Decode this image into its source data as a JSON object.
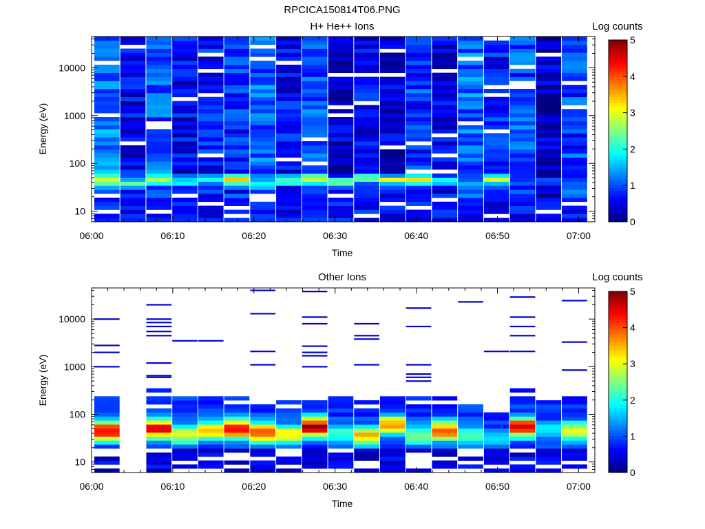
{
  "figure_title": "RPCICA150814T06.PNG",
  "chart_data": [
    {
      "type": "heatmap",
      "title": "H+ He++ Ions",
      "xlabel": "Time",
      "ylabel": "Energy (eV)",
      "y_scale": "log",
      "y_range": [
        6,
        45000
      ],
      "x_range": [
        "06:00",
        "07:02"
      ],
      "x_ticks": [
        "06:00",
        "06:10",
        "06:20",
        "06:30",
        "06:40",
        "06:50",
        "07:00"
      ],
      "y_ticks": [
        "10",
        "100",
        "1000",
        "10000"
      ],
      "colorbar": {
        "label": "Log counts",
        "range": [
          0,
          5
        ],
        "ticks": [
          "0",
          "1",
          "2",
          "3",
          "4",
          "5"
        ]
      },
      "columns": 19,
      "column_step_minutes": 3.2,
      "peak_energy_ev": [
        45,
        40,
        45,
        42,
        45,
        45,
        40,
        45,
        48,
        40,
        50,
        45,
        45,
        45,
        40,
        48,
        42,
        40,
        38
      ],
      "peak_log_counts": [
        2.7,
        2.3,
        2.6,
        2.2,
        1.9,
        3.8,
        1.5,
        2.6,
        2.9,
        2.4,
        2.6,
        2.8,
        3.4,
        1.6,
        1.2,
        2.7,
        1.0,
        1.0,
        1.3
      ],
      "background_log_counts": [
        1.2,
        0.5,
        1.0,
        0.6,
        0.7,
        0.8,
        1.1,
        0.6,
        1.0,
        0.4,
        0.6,
        0.4,
        0.9,
        0.5,
        1.1,
        0.7,
        1.0,
        0.3,
        0.9
      ]
    },
    {
      "type": "heatmap",
      "title": "Other Ions",
      "xlabel": "Time",
      "ylabel": "Energy (eV)",
      "y_scale": "log",
      "y_range": [
        6,
        45000
      ],
      "x_range": [
        "06:00",
        "07:02"
      ],
      "x_ticks": [
        "06:00",
        "06:10",
        "06:20",
        "06:30",
        "06:40",
        "06:50",
        "07:00"
      ],
      "y_ticks": [
        "10",
        "100",
        "1000",
        "10000"
      ],
      "colorbar": {
        "label": "Log counts",
        "range": [
          0,
          5
        ],
        "ticks": [
          "0",
          "1",
          "2",
          "3",
          "4",
          "5"
        ]
      },
      "columns": 19,
      "column_step_minutes": 3.2,
      "peak_energy_ev": [
        45,
        0,
        50,
        38,
        45,
        50,
        42,
        38,
        55,
        42,
        35,
        60,
        36,
        45,
        35,
        30,
        55,
        45,
        45
      ],
      "peak_log_counts": [
        4.3,
        0,
        4.2,
        2.8,
        3.2,
        4.3,
        4.0,
        3.0,
        4.6,
        1.8,
        3.2,
        3.6,
        2.3,
        3.9,
        1.9,
        1.3,
        4.3,
        1.5,
        2.8
      ],
      "band_top_ev": [
        240,
        0,
        320,
        230,
        280,
        220,
        240,
        200,
        310,
        240,
        260,
        250,
        280,
        280,
        170,
        100,
        350,
        240,
        280
      ],
      "sparse_lines_ev": [
        [
          10000,
          2800,
          2000,
          1000
        ],
        [],
        [
          20000,
          10000,
          8500,
          7000,
          5500,
          4500,
          1200,
          650,
          600
        ],
        [
          3500
        ],
        [
          3500
        ],
        [],
        [
          40000,
          13000,
          2100,
          1100
        ],
        [],
        [
          38000,
          11000,
          8000,
          2700,
          2000,
          1700,
          1000
        ],
        [],
        [
          8000,
          4500,
          3800,
          1100
        ],
        [],
        [
          17000,
          7000,
          1100,
          700,
          600,
          500
        ],
        [],
        [
          23000
        ],
        [
          2100
        ],
        [
          29000,
          11000,
          7000,
          4500,
          2100
        ],
        [],
        [
          24500,
          3300,
          850
        ]
      ]
    }
  ]
}
